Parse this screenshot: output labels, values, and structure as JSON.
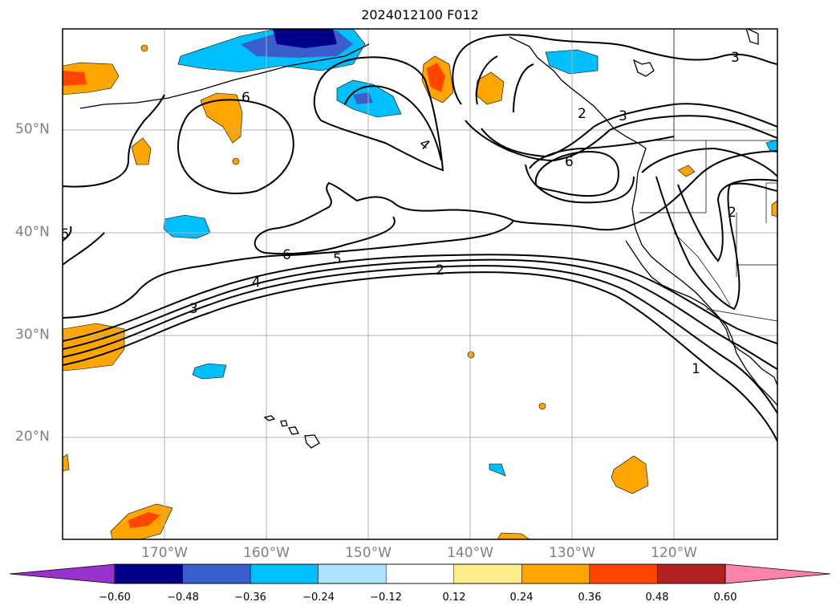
{
  "title": "2024012100 F012",
  "lat_labels": [
    "50°N",
    "40°N",
    "30°N",
    "20°N"
  ],
  "lon_labels": [
    "170°W",
    "160°W",
    "150°W",
    "140°W",
    "130°W",
    "120°W"
  ],
  "colorbar": {
    "ticks": [
      "−0.60",
      "−0.48",
      "−0.36",
      "−0.24",
      "−0.12",
      "0.12",
      "0.24",
      "0.36",
      "0.48",
      "0.60"
    ],
    "colors": [
      "#9932cc",
      "#00008b",
      "#3a5fcd",
      "#00bfff",
      "#b0e2ff",
      "#ffffff",
      "#ffec8b",
      "#ffa500",
      "#ff4500",
      "#b22222",
      "#ff82ab"
    ]
  },
  "contour_labels": [
    "6",
    "4",
    "3",
    "2",
    "3",
    "6",
    "2",
    "6",
    "6",
    "5",
    "4",
    "3",
    "2",
    "1"
  ]
}
